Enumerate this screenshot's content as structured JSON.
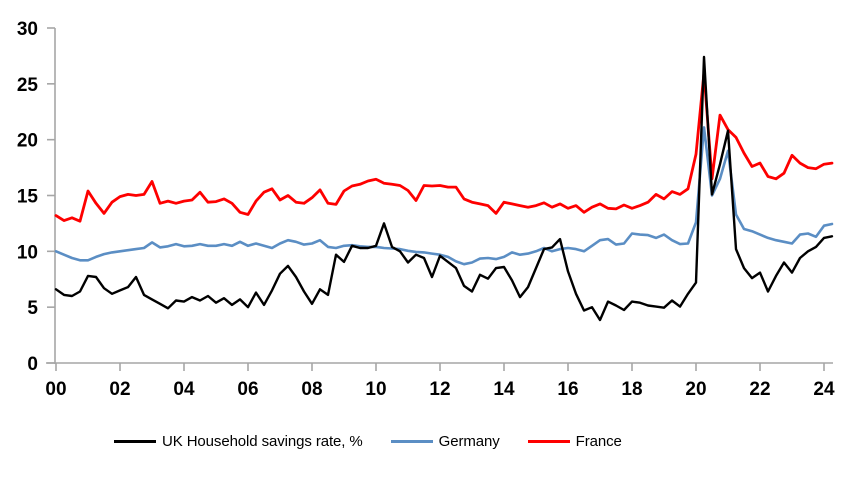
{
  "chart_data": {
    "type": "line",
    "title": "",
    "xlabel": "",
    "ylabel": "",
    "frequency": "quarterly",
    "x_start": "2000 Q1",
    "x_end": "2024 Q2",
    "ylim": [
      0,
      30
    ],
    "grid": false,
    "legend_position": "bottom",
    "axis_color": "#a6a6a6",
    "text_color": "#000000",
    "y_tick_labels": [
      "0",
      "5",
      "10",
      "15",
      "20",
      "25",
      "30"
    ],
    "x_tick_labels": [
      "00",
      "02",
      "04",
      "06",
      "08",
      "10",
      "12",
      "14",
      "16",
      "18",
      "20",
      "22",
      "24"
    ],
    "series": [
      {
        "name": "UK Household savings rate, %",
        "color": "#000000",
        "stroke_width": 2.4,
        "values": [
          6.6,
          6.1,
          6.0,
          6.4,
          7.8,
          7.7,
          6.7,
          6.2,
          6.5,
          6.8,
          7.7,
          6.1,
          5.7,
          5.3,
          4.9,
          5.6,
          5.5,
          5.9,
          5.6,
          6.0,
          5.4,
          5.8,
          5.2,
          5.7,
          5.0,
          6.3,
          5.2,
          6.5,
          8.0,
          8.7,
          7.7,
          6.4,
          5.3,
          6.6,
          6.1,
          9.7,
          9.05,
          10.5,
          10.3,
          10.3,
          10.5,
          12.5,
          10.4,
          10.0,
          9.0,
          9.7,
          9.4,
          7.7,
          9.6,
          9.05,
          8.5,
          6.9,
          6.4,
          7.9,
          7.55,
          8.5,
          8.6,
          7.4,
          5.9,
          6.8,
          8.5,
          10.2,
          10.35,
          11.1,
          8.2,
          6.2,
          4.7,
          5.0,
          3.85,
          5.5,
          5.15,
          4.75,
          5.5,
          5.4,
          5.15,
          5.05,
          4.95,
          5.6,
          5.05,
          6.2,
          7.2,
          27.4,
          15.1,
          17.8,
          20.8,
          10.2,
          8.5,
          7.6,
          8.1,
          6.4,
          7.8,
          9.0,
          8.1,
          9.4,
          10.0,
          10.4,
          11.2,
          11.35
        ]
      },
      {
        "name": "Germany",
        "color": "#5b8ec4",
        "stroke_width": 2.6,
        "values": [
          10.0,
          9.7,
          9.4,
          9.2,
          9.2,
          9.5,
          9.75,
          9.9,
          10.0,
          10.1,
          10.2,
          10.3,
          10.8,
          10.35,
          10.45,
          10.65,
          10.45,
          10.5,
          10.65,
          10.5,
          10.5,
          10.65,
          10.5,
          10.85,
          10.5,
          10.7,
          10.5,
          10.3,
          10.7,
          11.0,
          10.85,
          10.6,
          10.7,
          11.0,
          10.4,
          10.3,
          10.5,
          10.55,
          10.45,
          10.4,
          10.4,
          10.3,
          10.25,
          10.2,
          10.05,
          9.95,
          9.9,
          9.8,
          9.7,
          9.5,
          9.1,
          8.85,
          9.0,
          9.35,
          9.4,
          9.3,
          9.5,
          9.9,
          9.7,
          9.8,
          10.0,
          10.3,
          10.0,
          10.2,
          10.3,
          10.2,
          10.0,
          10.5,
          11.0,
          11.1,
          10.6,
          10.7,
          11.6,
          11.5,
          11.45,
          11.2,
          11.5,
          11.0,
          10.65,
          10.7,
          12.6,
          21.1,
          15.0,
          16.5,
          19.0,
          13.3,
          12.0,
          11.8,
          11.5,
          11.2,
          11.0,
          10.85,
          10.7,
          11.5,
          11.6,
          11.3,
          12.3,
          12.45
        ]
      },
      {
        "name": "France",
        "color": "#fe0000",
        "stroke_width": 2.8,
        "values": [
          13.2,
          12.75,
          13.0,
          12.7,
          15.4,
          14.3,
          13.4,
          14.4,
          14.9,
          15.1,
          15.0,
          15.1,
          16.25,
          14.3,
          14.5,
          14.3,
          14.5,
          14.6,
          15.3,
          14.4,
          14.45,
          14.7,
          14.3,
          13.5,
          13.3,
          14.5,
          15.3,
          15.6,
          14.6,
          15.0,
          14.4,
          14.3,
          14.8,
          15.5,
          14.3,
          14.2,
          15.4,
          15.85,
          16.0,
          16.3,
          16.45,
          16.1,
          16.0,
          15.9,
          15.45,
          14.55,
          15.9,
          15.85,
          15.9,
          15.75,
          15.75,
          14.7,
          14.4,
          14.25,
          14.1,
          13.4,
          14.4,
          14.25,
          14.1,
          13.95,
          14.1,
          14.35,
          13.95,
          14.25,
          13.85,
          14.1,
          13.5,
          13.95,
          14.25,
          13.85,
          13.8,
          14.15,
          13.85,
          14.1,
          14.4,
          15.1,
          14.7,
          15.35,
          15.1,
          15.6,
          18.7,
          26.0,
          16.5,
          22.2,
          20.9,
          20.2,
          18.8,
          17.6,
          17.9,
          16.7,
          16.5,
          17.0,
          18.6,
          17.9,
          17.5,
          17.4,
          17.8,
          17.9
        ]
      }
    ]
  }
}
